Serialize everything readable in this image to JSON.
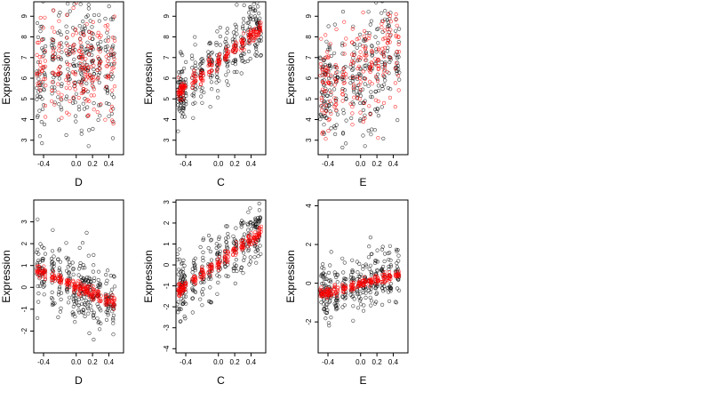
{
  "figure": {
    "background": "#ffffff",
    "point_style": "open-circle",
    "colors": {
      "observed": "#000000",
      "fitted": "#ff0000"
    }
  },
  "chart_data": [
    {
      "type": "scatter",
      "xlabel": "D",
      "ylabel": "Expression",
      "xlim": [
        -0.52,
        0.58
      ],
      "ylim": [
        2.3,
        9.7
      ],
      "x_ticks": [
        -0.4,
        0.0,
        0.2,
        0.4
      ],
      "x_tick_labels": [
        "-0.4",
        "0.0",
        "0.2",
        "0.4"
      ],
      "y_ticks": [
        3,
        4,
        5,
        6,
        7,
        8,
        9
      ],
      "y_tick_labels": [
        "3",
        "4",
        "5",
        "6",
        "7",
        "8",
        "9"
      ],
      "trend": {
        "type": "none",
        "spread_observed": 1.5,
        "spread_fitted": 1.3
      },
      "x_clusters": [
        -0.46,
        -0.4,
        -0.28,
        -0.2,
        -0.1,
        -0.02,
        0.05,
        0.1,
        0.15,
        0.2,
        0.28,
        0.38,
        0.45
      ],
      "y_center": 6.6
    },
    {
      "type": "scatter",
      "xlabel": "C",
      "ylabel": "Expression",
      "xlim": [
        -0.52,
        0.58
      ],
      "ylim": [
        2.3,
        9.7
      ],
      "x_ticks": [
        -0.4,
        0.0,
        0.2,
        0.4
      ],
      "x_tick_labels": [
        "-0.4",
        "0.0",
        "0.2",
        "0.4"
      ],
      "y_ticks": [
        3,
        4,
        5,
        6,
        7,
        8,
        9
      ],
      "y_tick_labels": [
        "3",
        "4",
        "5",
        "6",
        "7",
        "8",
        "9"
      ],
      "trend": {
        "type": "linear",
        "y_at_xmin": 5.2,
        "y_at_xmax": 8.6,
        "spread_observed": 0.7,
        "spread_fitted": 0.2
      },
      "x_clusters": [
        -0.48,
        -0.45,
        -0.42,
        -0.3,
        -0.2,
        -0.1,
        0.0,
        0.1,
        0.2,
        0.3,
        0.38,
        0.45,
        0.5
      ],
      "y_center": 6.5
    },
    {
      "type": "scatter",
      "xlabel": "E",
      "ylabel": "Expression",
      "xlim": [
        -0.52,
        0.58
      ],
      "ylim": [
        2.3,
        9.7
      ],
      "x_ticks": [
        -0.4,
        0.0,
        0.2,
        0.4
      ],
      "x_tick_labels": [
        "-0.4",
        "0.0",
        "0.2",
        "0.4"
      ],
      "y_ticks": [
        3,
        4,
        5,
        6,
        7,
        8,
        9
      ],
      "y_tick_labels": [
        "3",
        "4",
        "5",
        "6",
        "7",
        "8",
        "9"
      ],
      "trend": {
        "type": "linear",
        "y_at_xmin": 5.5,
        "y_at_xmax": 7.5,
        "spread_observed": 1.5,
        "spread_fitted": 1.3
      },
      "x_clusters": [
        -0.47,
        -0.43,
        -0.38,
        -0.3,
        -0.2,
        -0.1,
        -0.02,
        0.05,
        0.12,
        0.2,
        0.28,
        0.35,
        0.45
      ],
      "y_center": 6.5
    },
    {
      "type": "scatter",
      "xlabel": "D",
      "ylabel": "Expression",
      "xlim": [
        -0.52,
        0.58
      ],
      "ylim": [
        -3.0,
        4.0
      ],
      "x_ticks": [
        -0.4,
        0.0,
        0.2,
        0.4
      ],
      "x_tick_labels": [
        "-0.4",
        "0.0",
        "0.2",
        "0.4"
      ],
      "y_ticks": [
        -2,
        -1,
        0,
        1,
        2,
        3
      ],
      "y_tick_labels": [
        "-2",
        "-1",
        "0",
        "1",
        "2",
        "3"
      ],
      "trend": {
        "type": "linear",
        "y_at_xmin": 0.85,
        "y_at_xmax": -0.9,
        "spread_observed": 0.8,
        "spread_fitted": 0.15
      },
      "x_clusters": [
        -0.46,
        -0.4,
        -0.28,
        -0.2,
        -0.1,
        -0.02,
        0.05,
        0.1,
        0.15,
        0.2,
        0.28,
        0.38,
        0.45
      ],
      "y_center": 0.0
    },
    {
      "type": "scatter",
      "xlabel": "C",
      "ylabel": "Expression",
      "xlim": [
        -0.52,
        0.58
      ],
      "ylim": [
        -4.2,
        3.1
      ],
      "x_ticks": [
        -0.4,
        0.0,
        0.2,
        0.4
      ],
      "x_tick_labels": [
        "-0.4",
        "0.0",
        "0.2",
        "0.4"
      ],
      "y_ticks": [
        -4,
        -3,
        -2,
        -1,
        0,
        1,
        2,
        3
      ],
      "y_tick_labels": [
        "-4",
        "-3",
        "-2",
        "-1",
        "0",
        "1",
        "2",
        "3"
      ],
      "trend": {
        "type": "linear",
        "y_at_xmin": -1.3,
        "y_at_xmax": 1.7,
        "spread_observed": 0.7,
        "spread_fitted": 0.15
      },
      "x_clusters": [
        -0.48,
        -0.45,
        -0.42,
        -0.3,
        -0.2,
        -0.1,
        0.0,
        0.1,
        0.2,
        0.3,
        0.38,
        0.45,
        0.5
      ],
      "y_center": 0.0
    },
    {
      "type": "scatter",
      "xlabel": "E",
      "ylabel": "Expression",
      "xlim": [
        -0.52,
        0.58
      ],
      "ylim": [
        -3.6,
        4.3
      ],
      "x_ticks": [
        -0.4,
        0.0,
        0.2,
        0.4
      ],
      "x_tick_labels": [
        "-0.4",
        "0.0",
        "0.2",
        "0.4"
      ],
      "y_ticks": [
        -2,
        0,
        2,
        4
      ],
      "y_tick_labels": [
        "-2",
        "0",
        "2",
        "4"
      ],
      "trend": {
        "type": "linear",
        "y_at_xmin": -0.6,
        "y_at_xmax": 0.6,
        "spread_observed": 0.7,
        "spread_fitted": 0.12
      },
      "x_clusters": [
        -0.47,
        -0.43,
        -0.38,
        -0.3,
        -0.2,
        -0.1,
        -0.02,
        0.05,
        0.12,
        0.2,
        0.28,
        0.35,
        0.45
      ],
      "y_center": 0.0
    }
  ]
}
